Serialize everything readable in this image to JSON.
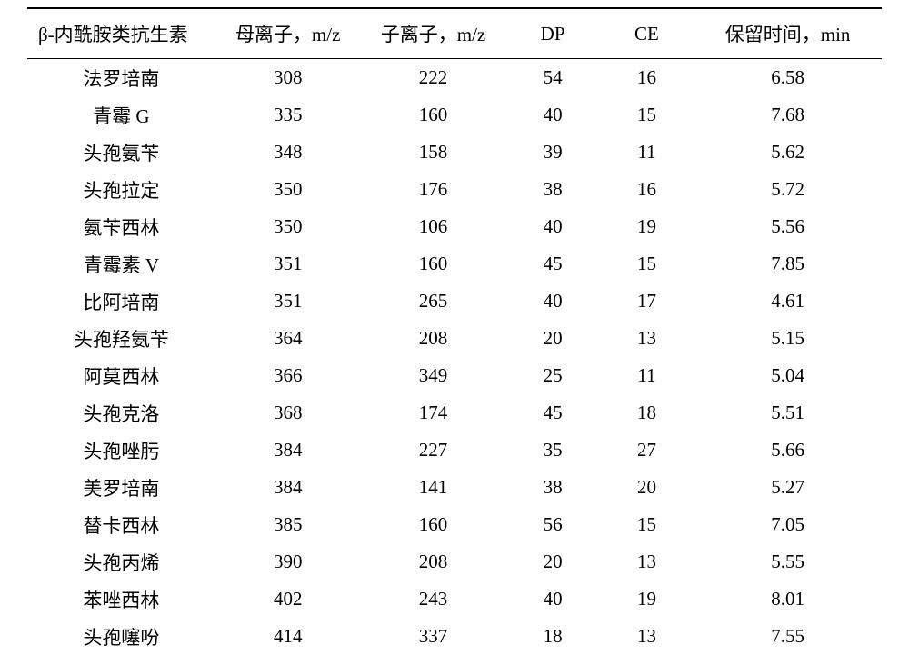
{
  "table": {
    "columns": [
      "β-内酰胺类抗生素",
      "母离子，m/z",
      "子离子，m/z",
      "DP",
      "CE",
      "保留时间，min"
    ],
    "rows": [
      {
        "name": "法罗培南",
        "parent": "308",
        "daughter": "222",
        "dp": "54",
        "ce": "16",
        "rt": "6.58"
      },
      {
        "name": "青霉 G",
        "parent": "335",
        "daughter": "160",
        "dp": "40",
        "ce": "15",
        "rt": "7.68"
      },
      {
        "name": "头孢氨苄",
        "parent": "348",
        "daughter": "158",
        "dp": "39",
        "ce": "11",
        "rt": "5.62"
      },
      {
        "name": "头孢拉定",
        "parent": "350",
        "daughter": "176",
        "dp": "38",
        "ce": "16",
        "rt": "5.72"
      },
      {
        "name": "氨苄西林",
        "parent": "350",
        "daughter": "106",
        "dp": "40",
        "ce": "19",
        "rt": "5.56"
      },
      {
        "name": "青霉素 V",
        "parent": "351",
        "daughter": "160",
        "dp": "45",
        "ce": "15",
        "rt": "7.85"
      },
      {
        "name": "比阿培南",
        "parent": "351",
        "daughter": "265",
        "dp": "40",
        "ce": "17",
        "rt": "4.61"
      },
      {
        "name": "头孢羟氨苄",
        "parent": "364",
        "daughter": "208",
        "dp": "20",
        "ce": "13",
        "rt": "5.15"
      },
      {
        "name": "阿莫西林",
        "parent": "366",
        "daughter": "349",
        "dp": "25",
        "ce": "11",
        "rt": "5.04"
      },
      {
        "name": "头孢克洛",
        "parent": "368",
        "daughter": "174",
        "dp": "45",
        "ce": "18",
        "rt": "5.51"
      },
      {
        "name": "头孢唑肟",
        "parent": "384",
        "daughter": "227",
        "dp": "35",
        "ce": "27",
        "rt": "5.66"
      },
      {
        "name": "美罗培南",
        "parent": "384",
        "daughter": "141",
        "dp": "38",
        "ce": "20",
        "rt": "5.27"
      },
      {
        "name": "替卡西林",
        "parent": "385",
        "daughter": "160",
        "dp": "56",
        "ce": "15",
        "rt": "7.05"
      },
      {
        "name": "头孢丙烯",
        "parent": "390",
        "daughter": "208",
        "dp": "20",
        "ce": "13",
        "rt": "5.55"
      },
      {
        "name": "苯唑西林",
        "parent": "402",
        "daughter": "243",
        "dp": "40",
        "ce": "19",
        "rt": "8.01"
      },
      {
        "name": "头孢噻吩",
        "parent": "414",
        "daughter": "337",
        "dp": "18",
        "ce": "13",
        "rt": "7.55"
      }
    ],
    "styling": {
      "background_color": "#ffffff",
      "text_color": "#000000",
      "border_color": "#000000",
      "header_border_top_width": 2,
      "header_border_bottom_width": 1.5,
      "font_family": "SimSun",
      "header_fontsize": 21,
      "body_fontsize": 21,
      "column_widths_pct": [
        22,
        17,
        17,
        11,
        11,
        22
      ],
      "column_alignments": [
        "left-header-center-body",
        "center",
        "center",
        "center",
        "center",
        "center"
      ]
    }
  }
}
